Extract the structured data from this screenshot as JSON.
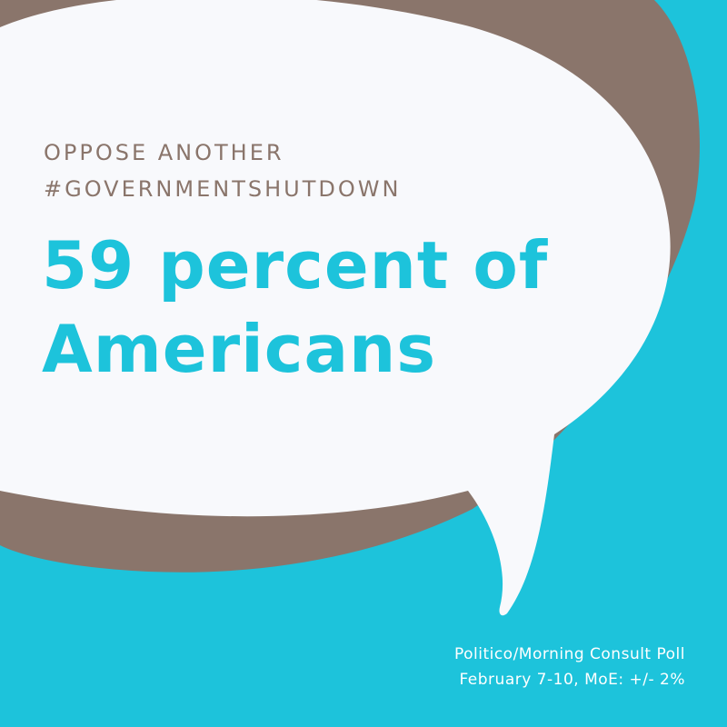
{
  "colors": {
    "background": "#1DC3DB",
    "brown": "#8A756B",
    "bubble": "#F8F9FC",
    "accent_text": "#1DC3DB",
    "label_text": "#8A756B",
    "source_text": "#FFFFFF"
  },
  "headline": {
    "small_lines": [
      "OPPOSE ANOTHER",
      "#GOVERNMENTSHUTDOWN"
    ],
    "big_lines": [
      "59 percent of",
      "Americans"
    ]
  },
  "source": {
    "lines": [
      "Politico/Morning Consult Poll",
      "February 7-10, MoE: +/- 2%"
    ]
  }
}
